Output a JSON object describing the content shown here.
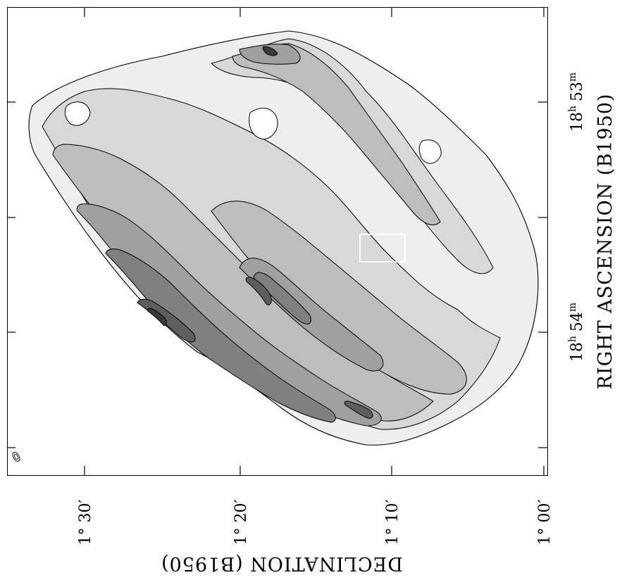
{
  "figure": {
    "dec_axis": {
      "title": "DECLINATION (B1950)",
      "ticks": [
        "1° 30′",
        "1° 20′",
        "1° 10′",
        "1° 00′"
      ]
    },
    "ra_axis": {
      "title": "RIGHT ASCENSION (B1950)",
      "ticks": [
        {
          "h": "18",
          "hu": "h",
          "m": "53",
          "mu": "m"
        },
        {
          "h": "18",
          "hu": "h",
          "m": "54",
          "mu": "m"
        }
      ]
    },
    "contour_levels": 7,
    "greys": [
      "#eeeeee",
      "#d8d8d8",
      "#bdbdbd",
      "#a0a0a0",
      "#808080",
      "#5e5e5e",
      "#3a3a3a"
    ],
    "beam_marker": "beam-ellipse",
    "highlight_box": "white rectangle"
  }
}
